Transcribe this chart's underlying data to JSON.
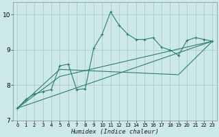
{
  "xlabel": "Humidex (Indice chaleur)",
  "background_color": "#cce8e8",
  "grid_color": "#aacccc",
  "line_color": "#2d7d6f",
  "xlim": [
    -0.5,
    23.5
  ],
  "ylim": [
    7.0,
    10.35
  ],
  "yticks": [
    7,
    8,
    9,
    10
  ],
  "xticks": [
    0,
    1,
    2,
    3,
    4,
    5,
    6,
    7,
    8,
    9,
    10,
    11,
    12,
    13,
    14,
    15,
    16,
    17,
    18,
    19,
    20,
    21,
    22,
    23
  ],
  "lines": [
    {
      "x": [
        0,
        1,
        2,
        3,
        4,
        5,
        6,
        7,
        8,
        9,
        10,
        11,
        12,
        13,
        14,
        15,
        16,
        17,
        18,
        19,
        20,
        21,
        22,
        23
      ],
      "y": [
        7.35,
        7.6,
        7.75,
        7.82,
        7.88,
        8.55,
        8.6,
        7.88,
        7.9,
        9.05,
        9.45,
        10.08,
        9.7,
        9.45,
        9.3,
        9.3,
        9.35,
        9.08,
        9.0,
        8.85,
        9.27,
        9.35,
        9.3,
        9.25
      ],
      "marker": "+"
    },
    {
      "x": [
        0,
        23
      ],
      "y": [
        7.35,
        9.25
      ],
      "marker": null,
      "straight": true
    },
    {
      "x": [
        0,
        5,
        23
      ],
      "y": [
        7.35,
        8.25,
        9.25
      ],
      "marker": null,
      "straight": false
    },
    {
      "x": [
        0,
        5,
        19,
        23
      ],
      "y": [
        7.35,
        8.45,
        8.3,
        9.25
      ],
      "marker": null,
      "straight": false
    }
  ]
}
